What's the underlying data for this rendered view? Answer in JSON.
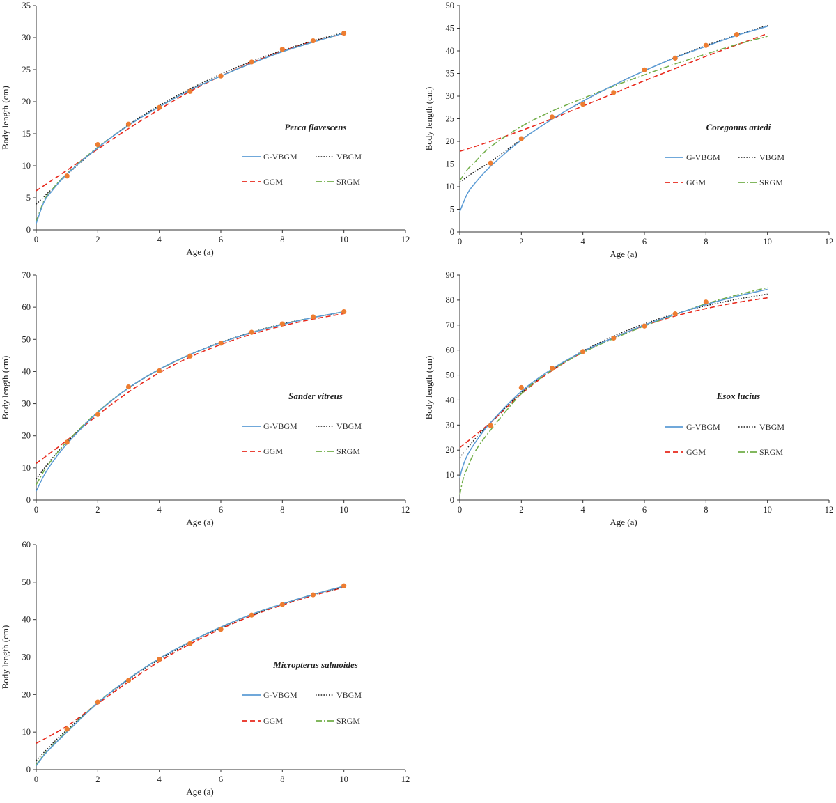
{
  "colors": {
    "G-VBGM": "#5b9bd5",
    "VBGM": "#1a1a1a",
    "GGM": "#e8291c",
    "SRGM": "#70ad47",
    "observed": "#ed7d31",
    "axis": "#333333"
  },
  "legend_labels": [
    "G-VBGM",
    "VBGM",
    "GGM",
    "SRGM"
  ],
  "chart_data": [
    {
      "type": "line",
      "title": "Perca flavescens",
      "xlabel": "Age (a)",
      "ylabel": "Body length (cm)",
      "xlim": [
        0,
        12
      ],
      "ylim": [
        0,
        35
      ],
      "xticks": [
        "0",
        "2",
        "4",
        "6",
        "8",
        "10",
        "12"
      ],
      "yticks": [
        "0",
        "5",
        "10",
        "15",
        "20",
        "25",
        "30",
        "35"
      ],
      "grid": false,
      "legend_position": "right-middle",
      "observed": {
        "x": [
          1,
          2,
          3,
          4,
          5,
          6,
          7,
          8,
          9,
          10
        ],
        "y": [
          8.4,
          13.3,
          16.5,
          19.1,
          21.6,
          24.0,
          26.2,
          28.2,
          29.5,
          30.7
        ]
      },
      "series": [
        {
          "name": "G-VBGM",
          "x": [
            0,
            0.25,
            0.5,
            1,
            2,
            3,
            4,
            5,
            6,
            7,
            8,
            9,
            10
          ],
          "y": [
            1.0,
            4.3,
            6.0,
            8.7,
            12.8,
            16.3,
            19.2,
            21.8,
            24.0,
            26.0,
            27.8,
            29.3,
            30.7
          ]
        },
        {
          "name": "VBGM",
          "x": [
            0,
            1,
            2,
            3,
            4,
            5,
            6,
            7,
            8,
            9,
            10
          ],
          "y": [
            4.0,
            8.6,
            12.8,
            16.4,
            19.4,
            22.0,
            24.3,
            26.3,
            28.0,
            29.5,
            30.8
          ]
        },
        {
          "name": "GGM",
          "x": [
            0,
            1,
            2,
            3,
            4,
            5,
            6,
            7,
            8,
            9,
            10
          ],
          "y": [
            6.1,
            9.3,
            12.6,
            15.8,
            18.8,
            21.6,
            24.0,
            26.1,
            27.9,
            29.4,
            30.6
          ]
        },
        {
          "name": "SRGM",
          "x": [
            0,
            0.25,
            0.5,
            1,
            2,
            3,
            4,
            5,
            6,
            7,
            8,
            9,
            10
          ],
          "y": [
            1.3,
            4.5,
            6.2,
            8.8,
            12.9,
            16.3,
            19.2,
            21.8,
            24.0,
            26.0,
            27.8,
            29.3,
            30.7
          ]
        }
      ]
    },
    {
      "type": "line",
      "title": "Coregonus artedi",
      "xlabel": "Age (a)",
      "ylabel": "Body length (cm)",
      "xlim": [
        0,
        12
      ],
      "ylim": [
        0,
        50
      ],
      "xticks": [
        "0",
        "2",
        "4",
        "6",
        "8",
        "10",
        "12"
      ],
      "yticks": [
        "0",
        "5",
        "10",
        "15",
        "20",
        "25",
        "30",
        "35",
        "40",
        "45",
        "50"
      ],
      "grid": false,
      "legend_position": "right-middle",
      "observed": {
        "x": [
          1,
          2,
          3,
          4,
          5,
          6,
          7,
          8,
          9
        ],
        "y": [
          15.2,
          20.6,
          25.4,
          28.2,
          30.8,
          35.8,
          38.4,
          41.2,
          43.6
        ]
      },
      "series": [
        {
          "name": "G-VBGM",
          "x": [
            0,
            0.25,
            0.5,
            1,
            2,
            3,
            4,
            5,
            6,
            7,
            8,
            9,
            10
          ],
          "y": [
            4.5,
            8.5,
            10.8,
            14.5,
            20.3,
            24.9,
            28.9,
            32.4,
            35.6,
            38.5,
            41.0,
            43.4,
            45.4
          ]
        },
        {
          "name": "VBGM",
          "x": [
            0,
            0.5,
            1,
            2,
            3,
            4,
            5,
            6,
            7,
            8,
            9,
            10
          ],
          "y": [
            11.0,
            13.4,
            15.5,
            20.4,
            24.9,
            28.8,
            32.4,
            35.6,
            38.6,
            41.2,
            43.5,
            45.6
          ]
        },
        {
          "name": "GGM",
          "x": [
            0,
            1,
            2,
            3,
            4,
            5,
            6,
            7,
            8,
            9,
            10
          ],
          "y": [
            17.8,
            20.0,
            22.4,
            25.0,
            27.8,
            30.6,
            33.4,
            36.1,
            38.8,
            41.3,
            43.8
          ]
        },
        {
          "name": "SRGM",
          "x": [
            0,
            0.25,
            0.5,
            1,
            2,
            3,
            4,
            5,
            6,
            7,
            8,
            9,
            10
          ],
          "y": [
            11.3,
            13.8,
            15.5,
            18.8,
            23.3,
            26.7,
            29.5,
            32.2,
            34.7,
            37.1,
            39.3,
            41.4,
            43.2
          ]
        }
      ]
    },
    {
      "type": "line",
      "title": "Sander vitreus",
      "xlabel": "Age (a)",
      "ylabel": "Body length (cm)",
      "xlim": [
        0,
        12
      ],
      "ylim": [
        0,
        70
      ],
      "xticks": [
        "0",
        "2",
        "4",
        "6",
        "8",
        "10",
        "12"
      ],
      "yticks": [
        "0",
        "10",
        "20",
        "30",
        "40",
        "50",
        "60",
        "70"
      ],
      "grid": false,
      "legend_position": "right-middle",
      "observed": {
        "x": [
          1,
          2,
          3,
          4,
          5,
          6,
          7,
          8,
          9,
          10
        ],
        "y": [
          18.0,
          26.6,
          35.2,
          40.2,
          44.8,
          48.8,
          52.2,
          54.8,
          57.0,
          58.6
        ]
      },
      "series": [
        {
          "name": "G-VBGM",
          "x": [
            0,
            0.25,
            0.5,
            1,
            2,
            3,
            4,
            5,
            6,
            7,
            8,
            9,
            10
          ],
          "y": [
            2.8,
            7.6,
            11.4,
            17.5,
            27.3,
            34.9,
            40.7,
            45.3,
            49.0,
            52.1,
            54.6,
            56.8,
            58.6
          ]
        },
        {
          "name": "VBGM",
          "x": [
            0,
            0.5,
            1,
            2,
            3,
            4,
            5,
            6,
            7,
            8,
            9,
            10
          ],
          "y": [
            6.5,
            12.8,
            18.0,
            27.3,
            34.8,
            40.6,
            45.3,
            49.1,
            52.2,
            54.8,
            56.8,
            58.5
          ]
        },
        {
          "name": "GGM",
          "x": [
            0,
            1,
            2,
            3,
            4,
            5,
            6,
            7,
            8,
            9,
            10
          ],
          "y": [
            11.4,
            18.6,
            26.5,
            33.6,
            39.6,
            44.5,
            48.4,
            51.6,
            54.2,
            56.3,
            58.0
          ]
        },
        {
          "name": "SRGM",
          "x": [
            0,
            0.25,
            0.5,
            1,
            2,
            3,
            4,
            5,
            6,
            7,
            8,
            9,
            10
          ],
          "y": [
            4.8,
            9.0,
            12.4,
            18.2,
            27.5,
            34.9,
            40.6,
            45.2,
            49.0,
            52.1,
            54.7,
            56.8,
            58.6
          ]
        }
      ]
    },
    {
      "type": "line",
      "title": "Esox lucius",
      "xlabel": "Age (a)",
      "ylabel": "Body length (cm)",
      "xlim": [
        0,
        12
      ],
      "ylim": [
        0,
        90
      ],
      "xticks": [
        "0",
        "2",
        "4",
        "6",
        "8",
        "10",
        "12"
      ],
      "yticks": [
        "0",
        "10",
        "20",
        "30",
        "40",
        "50",
        "60",
        "70",
        "80",
        "90"
      ],
      "grid": false,
      "legend_position": "right-middle",
      "observed": {
        "x": [
          1,
          2,
          3,
          4,
          5,
          6,
          7,
          8
        ],
        "y": [
          29.8,
          45.0,
          52.8,
          59.4,
          64.8,
          69.6,
          74.5,
          79.2
        ]
      },
      "series": [
        {
          "name": "G-VBGM",
          "x": [
            0,
            0.1,
            0.25,
            0.5,
            1,
            2,
            3,
            4,
            5,
            6,
            7,
            8,
            9,
            10
          ],
          "y": [
            9.0,
            13.5,
            18.0,
            23.0,
            31.0,
            43.5,
            52.5,
            59.4,
            65.0,
            70.0,
            74.3,
            78.2,
            81.5,
            84.3
          ]
        },
        {
          "name": "VBGM",
          "x": [
            0,
            0.5,
            1,
            2,
            3,
            4,
            5,
            6,
            7,
            8,
            9,
            10
          ],
          "y": [
            17.0,
            24.5,
            31.0,
            43.0,
            52.2,
            59.6,
            65.6,
            70.5,
            74.5,
            77.7,
            80.3,
            82.4
          ]
        },
        {
          "name": "GGM",
          "x": [
            0,
            1,
            2,
            3,
            4,
            5,
            6,
            7,
            8,
            9,
            10
          ],
          "y": [
            21.0,
            31.0,
            42.5,
            51.8,
            59.2,
            65.0,
            69.8,
            73.6,
            76.6,
            79.0,
            80.9
          ]
        },
        {
          "name": "SRGM",
          "x": [
            0,
            0.1,
            0.25,
            0.5,
            1,
            2,
            3,
            4,
            5,
            6,
            7,
            8,
            9,
            10
          ],
          "y": [
            2.0,
            8.0,
            13.0,
            19.5,
            28.0,
            42.5,
            52.0,
            59.0,
            64.6,
            69.6,
            74.2,
            78.5,
            82.0,
            85.0
          ]
        }
      ]
    },
    {
      "type": "line",
      "title": "Micropterus salmoides",
      "xlabel": "Age (a)",
      "ylabel": "Body length (cm)",
      "xlim": [
        0,
        12
      ],
      "ylim": [
        0,
        60
      ],
      "xticks": [
        "0",
        "2",
        "4",
        "6",
        "8",
        "10",
        "12"
      ],
      "yticks": [
        "0",
        "10",
        "20",
        "30",
        "40",
        "50",
        "60"
      ],
      "grid": false,
      "legend_position": "right-middle",
      "observed": {
        "x": [
          1,
          2,
          3,
          4,
          5,
          6,
          7,
          8,
          9,
          10
        ],
        "y": [
          10.8,
          18.0,
          23.8,
          29.4,
          33.6,
          37.4,
          41.2,
          44.0,
          46.6,
          49.0
        ]
      },
      "series": [
        {
          "name": "G-VBGM",
          "x": [
            0,
            0.25,
            0.5,
            1,
            2,
            3,
            4,
            5,
            6,
            7,
            8,
            9,
            10
          ],
          "y": [
            1.0,
            3.8,
            6.0,
            10.0,
            17.8,
            24.2,
            29.6,
            34.1,
            38.0,
            41.4,
            44.2,
            46.7,
            48.9
          ]
        },
        {
          "name": "VBGM",
          "x": [
            0,
            0.5,
            1,
            2,
            3,
            4,
            5,
            6,
            7,
            8,
            9,
            10
          ],
          "y": [
            2.4,
            6.7,
            10.6,
            17.8,
            24.0,
            29.3,
            33.9,
            37.8,
            41.2,
            44.1,
            46.6,
            48.7
          ]
        },
        {
          "name": "GGM",
          "x": [
            0,
            1,
            2,
            3,
            4,
            5,
            6,
            7,
            8,
            9,
            10
          ],
          "y": [
            7.0,
            11.6,
            17.6,
            23.4,
            28.8,
            33.5,
            37.5,
            41.0,
            43.9,
            46.4,
            48.6
          ]
        },
        {
          "name": "SRGM",
          "x": [
            0,
            0.25,
            0.5,
            1,
            2,
            3,
            4,
            5,
            6,
            7,
            8,
            9,
            10
          ],
          "y": [
            1.3,
            4.0,
            6.2,
            10.2,
            17.9,
            24.2,
            29.6,
            34.1,
            38.0,
            41.4,
            44.2,
            46.7,
            48.9
          ]
        }
      ]
    }
  ]
}
